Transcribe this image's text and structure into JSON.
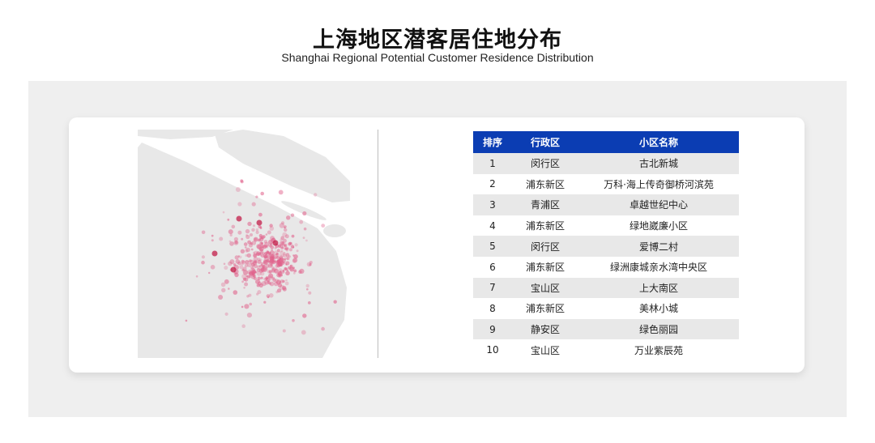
{
  "title": "上海地区潜客居住地分布",
  "subtitle": "Shanghai Regional Potential Customer Residence Distribution",
  "colors": {
    "header": "#0b3db3",
    "dots": "#e0608a",
    "land": "#e8e8e8",
    "panel": "#efefef"
  },
  "table": {
    "headers": [
      "排序",
      "行政区",
      "小区名称"
    ],
    "rows": [
      {
        "rank": "1",
        "district": "闵行区",
        "community": "古北新城"
      },
      {
        "rank": "2",
        "district": "浦东新区",
        "community": "万科·海上传奇御桥河滨苑"
      },
      {
        "rank": "3",
        "district": "青浦区",
        "community": "卓越世纪中心"
      },
      {
        "rank": "4",
        "district": "浦东新区",
        "community": "绿地崴廉小区"
      },
      {
        "rank": "5",
        "district": "闵行区",
        "community": "爱博二村"
      },
      {
        "rank": "6",
        "district": "浦东新区",
        "community": "绿洲康城亲水湾中央区"
      },
      {
        "rank": "7",
        "district": "宝山区",
        "community": "上大南区"
      },
      {
        "rank": "8",
        "district": "浦东新区",
        "community": "美林小城"
      },
      {
        "rank": "9",
        "district": "静安区",
        "community": "绿色丽园"
      },
      {
        "rank": "10",
        "district": "宝山区",
        "community": "万业紫辰苑"
      }
    ]
  },
  "chart_data": {
    "type": "scatter",
    "map": "Shanghai",
    "description_marks": "customer residence density points"
  }
}
